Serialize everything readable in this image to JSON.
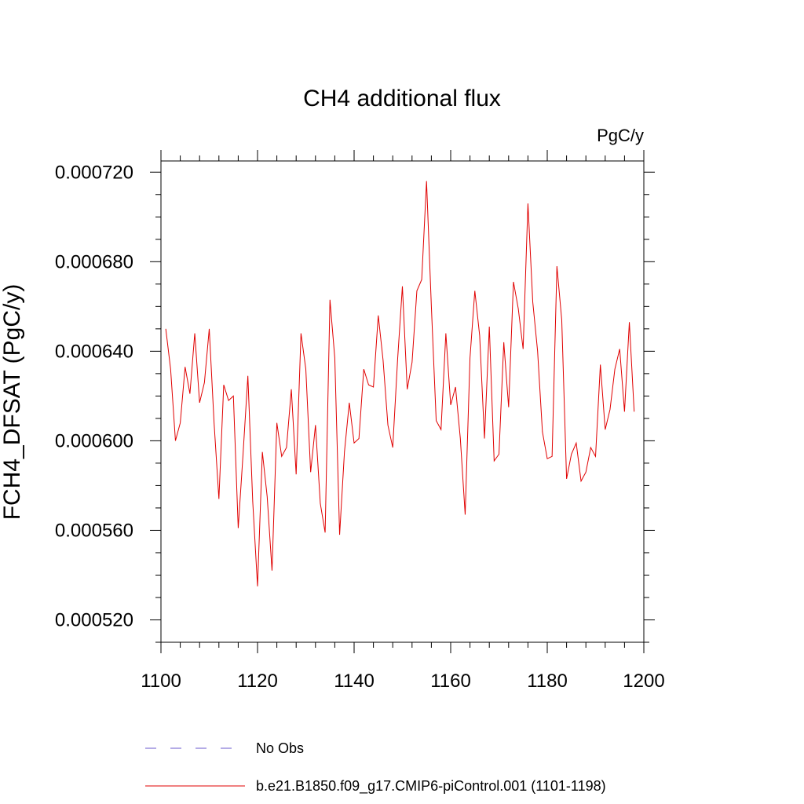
{
  "chart_data": {
    "type": "line",
    "title": "CH4 additional flux",
    "units": "PgC/y",
    "ylabel": "FCH4_DFSAT  (PgC/y)",
    "xlabel": "",
    "xlim": [
      1100,
      1200
    ],
    "ylim": [
      0.00051,
      0.000725
    ],
    "x_ticks": [
      {
        "value": 1100,
        "label": "1100"
      },
      {
        "value": 1120,
        "label": "1120"
      },
      {
        "value": 1140,
        "label": "1140"
      },
      {
        "value": 1160,
        "label": "1160"
      },
      {
        "value": 1180,
        "label": "1180"
      },
      {
        "value": 1200,
        "label": "1200"
      }
    ],
    "y_ticks": [
      {
        "value": 0.00052,
        "label": "0.000520"
      },
      {
        "value": 0.00056,
        "label": "0.000560"
      },
      {
        "value": 0.0006,
        "label": "0.000600"
      },
      {
        "value": 0.00064,
        "label": "0.000640"
      },
      {
        "value": 0.00068,
        "label": "0.000680"
      },
      {
        "value": 0.00072,
        "label": "0.000720"
      }
    ],
    "grid": false,
    "legend": {
      "placement": "bottom",
      "entries": [
        {
          "label": "No Obs",
          "color": "#6a5acd",
          "style": "dashed"
        },
        {
          "label": "b.e21.B1850.f09_g17.CMIP6-piControl.001 (1101-1198)",
          "color": "#e00000",
          "style": "solid"
        }
      ]
    },
    "series": [
      {
        "name": "b.e21.B1850.f09_g17.CMIP6-piControl.001 (1101-1198)",
        "color": "#e00000",
        "x": [
          1101,
          1102,
          1103,
          1104,
          1105,
          1106,
          1107,
          1108,
          1109,
          1110,
          1111,
          1112,
          1113,
          1114,
          1115,
          1116,
          1117,
          1118,
          1119,
          1120,
          1121,
          1122,
          1123,
          1124,
          1125,
          1126,
          1127,
          1128,
          1129,
          1130,
          1131,
          1132,
          1133,
          1134,
          1135,
          1136,
          1137,
          1138,
          1139,
          1140,
          1141,
          1142,
          1143,
          1144,
          1145,
          1146,
          1147,
          1148,
          1149,
          1150,
          1151,
          1152,
          1153,
          1154,
          1155,
          1156,
          1157,
          1158,
          1159,
          1160,
          1161,
          1162,
          1163,
          1164,
          1165,
          1166,
          1167,
          1168,
          1169,
          1170,
          1171,
          1172,
          1173,
          1174,
          1175,
          1176,
          1177,
          1178,
          1179,
          1180,
          1181,
          1182,
          1183,
          1184,
          1185,
          1186,
          1187,
          1188,
          1189,
          1190,
          1191,
          1192,
          1193,
          1194,
          1195,
          1196,
          1197,
          1198
        ],
        "values": [
          0.00065,
          0.000632,
          0.0006,
          0.000608,
          0.000633,
          0.000621,
          0.000648,
          0.000617,
          0.000626,
          0.00065,
          0.000608,
          0.000574,
          0.000625,
          0.000618,
          0.00062,
          0.000561,
          0.000594,
          0.000629,
          0.000573,
          0.000535,
          0.000595,
          0.000575,
          0.000542,
          0.000608,
          0.000593,
          0.000597,
          0.000623,
          0.000585,
          0.000648,
          0.000632,
          0.000586,
          0.000607,
          0.000572,
          0.000559,
          0.000663,
          0.000637,
          0.000558,
          0.000595,
          0.000617,
          0.000599,
          0.000601,
          0.000632,
          0.000625,
          0.000624,
          0.000656,
          0.000636,
          0.000607,
          0.000597,
          0.000636,
          0.000669,
          0.000623,
          0.000635,
          0.000667,
          0.000672,
          0.000716,
          0.00066,
          0.000609,
          0.000605,
          0.000648,
          0.000616,
          0.000624,
          0.000601,
          0.000567,
          0.000637,
          0.000667,
          0.000647,
          0.000601,
          0.000651,
          0.000591,
          0.000594,
          0.000644,
          0.000615,
          0.000671,
          0.000659,
          0.000641,
          0.000706,
          0.000662,
          0.00064,
          0.000604,
          0.000592,
          0.000593,
          0.000678,
          0.000654,
          0.000583,
          0.000594,
          0.000599,
          0.000582,
          0.000586,
          0.000597,
          0.000593,
          0.000634,
          0.000605,
          0.000614,
          0.000632,
          0.000641,
          0.000613,
          0.000653,
          0.000613
        ]
      }
    ]
  }
}
